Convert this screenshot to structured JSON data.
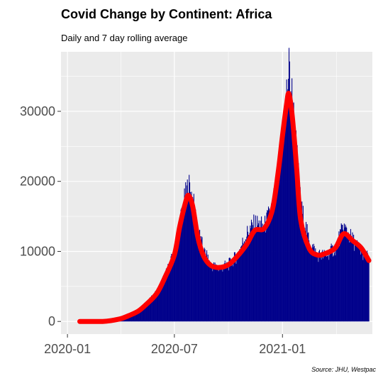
{
  "chart_data": {
    "type": "bar",
    "title": "Covid Change by Continent: Africa",
    "subtitle": "Daily and 7 day rolling average",
    "caption": "Source: JHU, Westpac",
    "xlabel": "",
    "ylabel": "",
    "x_range": [
      "2019-12-21",
      "2021-06-03"
    ],
    "ylim": [
      -1800,
      38500
    ],
    "y_ticks": [
      0,
      10000,
      20000,
      30000
    ],
    "y_tick_labels": [
      "0",
      "10000",
      "20000",
      "30000"
    ],
    "x_ticks": [
      "2020-01-01",
      "2020-07-01",
      "2021-01-01"
    ],
    "x_tick_labels": [
      "2020-01",
      "2020-07",
      "2021-01"
    ],
    "grid": true,
    "legend": "none",
    "series": [
      {
        "kind": "bar",
        "color": "#00008B",
        "x": [
          "2020-01-22",
          "2020-02-12",
          "2020-03-01",
          "2020-03-15",
          "2020-04-01",
          "2020-04-15",
          "2020-05-01",
          "2020-05-15",
          "2020-06-01",
          "2020-06-15",
          "2020-07-01",
          "2020-07-10",
          "2020-07-20",
          "2020-07-25",
          "2020-08-01",
          "2020-08-10",
          "2020-08-20",
          "2020-09-01",
          "2020-09-15",
          "2020-10-01",
          "2020-10-15",
          "2020-11-01",
          "2020-11-15",
          "2020-12-01",
          "2020-12-15",
          "2020-12-25",
          "2021-01-01",
          "2021-01-08",
          "2021-01-12",
          "2021-01-18",
          "2021-01-25",
          "2021-02-01",
          "2021-02-15",
          "2021-03-01",
          "2021-03-15",
          "2021-04-01",
          "2021-04-15",
          "2021-05-01",
          "2021-05-15",
          "2021-05-28"
        ],
        "values": [
          0,
          0,
          0,
          150,
          450,
          900,
          1600,
          2600,
          4200,
          6500,
          9800,
          14000,
          18000,
          19500,
          17500,
          13000,
          10000,
          8000,
          7600,
          8100,
          9300,
          12500,
          14000,
          13500,
          16500,
          21500,
          27000,
          32500,
          36000,
          31500,
          24000,
          16500,
          11500,
          9500,
          9400,
          10500,
          13500,
          11500,
          10000,
          9000
        ]
      },
      {
        "kind": "line",
        "name": "7 day rolling average",
        "color": "#FF0000",
        "x": [
          "2020-01-22",
          "2020-02-12",
          "2020-03-01",
          "2020-03-15",
          "2020-04-01",
          "2020-04-15",
          "2020-05-01",
          "2020-05-15",
          "2020-06-01",
          "2020-06-15",
          "2020-07-01",
          "2020-07-10",
          "2020-07-20",
          "2020-07-25",
          "2020-08-01",
          "2020-08-10",
          "2020-08-20",
          "2020-09-01",
          "2020-09-15",
          "2020-10-01",
          "2020-10-15",
          "2020-11-01",
          "2020-11-15",
          "2020-12-01",
          "2020-12-15",
          "2020-12-25",
          "2021-01-01",
          "2021-01-08",
          "2021-01-12",
          "2021-01-18",
          "2021-01-25",
          "2021-02-01",
          "2021-02-15",
          "2021-03-01",
          "2021-03-15",
          "2021-04-01",
          "2021-04-15",
          "2021-05-01",
          "2021-05-15",
          "2021-05-28"
        ],
        "values": [
          0,
          0,
          0,
          120,
          400,
          850,
          1500,
          2500,
          4000,
          6300,
          9500,
          13500,
          17000,
          18000,
          16500,
          12000,
          9300,
          8000,
          7700,
          8100,
          9200,
          11000,
          13000,
          13300,
          16000,
          21500,
          26500,
          31000,
          32500,
          29000,
          22000,
          14500,
          10500,
          9500,
          9700,
          10500,
          12500,
          11500,
          10500,
          8700
        ]
      }
    ]
  }
}
